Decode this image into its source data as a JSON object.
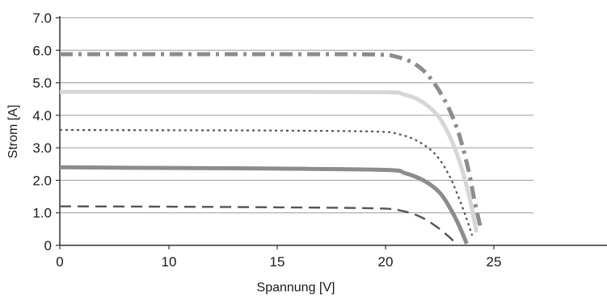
{
  "chart_data": {
    "type": "line",
    "title": "",
    "xlabel": "Spannung [V]",
    "ylabel": "Strom [A]",
    "xlim": [
      0,
      25
    ],
    "ylim": [
      0,
      7
    ],
    "x_ticks": [
      0,
      10,
      15,
      20,
      25
    ],
    "x_tick_labels": [
      "0",
      "10",
      "15",
      "20",
      "25"
    ],
    "y_ticks": [
      0,
      1,
      2,
      3,
      4,
      5,
      6,
      7
    ],
    "y_tick_labels": [
      "0",
      "1.0",
      "2.0",
      "3.0",
      "4.0",
      "5.0",
      "6.0",
      "7.0"
    ],
    "grid": "horizontal",
    "legend": "none",
    "series": [
      {
        "style": "dash-dot",
        "color": "#8c8c8c",
        "points": [
          [
            0,
            5.88
          ],
          [
            10,
            5.88
          ],
          [
            15,
            5.88
          ],
          [
            19.5,
            5.87
          ],
          [
            20.5,
            5.8
          ],
          [
            21.3,
            5.6
          ],
          [
            22.0,
            5.2
          ],
          [
            22.7,
            4.5
          ],
          [
            23.3,
            3.6
          ],
          [
            23.8,
            2.4
          ],
          [
            24.1,
            1.4
          ],
          [
            24.4,
            0.5
          ]
        ]
      },
      {
        "style": "solid",
        "color": "#d6d6d6",
        "points": [
          [
            0,
            4.72
          ],
          [
            10,
            4.72
          ],
          [
            15,
            4.72
          ],
          [
            20,
            4.71
          ],
          [
            20.8,
            4.65
          ],
          [
            21.6,
            4.45
          ],
          [
            22.4,
            4.0
          ],
          [
            23.0,
            3.3
          ],
          [
            23.5,
            2.4
          ],
          [
            23.9,
            1.4
          ],
          [
            24.2,
            0.4
          ]
        ]
      },
      {
        "style": "dotted",
        "color": "#555555",
        "points": [
          [
            0,
            3.55
          ],
          [
            10,
            3.54
          ],
          [
            15,
            3.53
          ],
          [
            19.5,
            3.5
          ],
          [
            20.6,
            3.42
          ],
          [
            21.5,
            3.2
          ],
          [
            22.3,
            2.8
          ],
          [
            22.9,
            2.2
          ],
          [
            23.3,
            1.6
          ],
          [
            23.7,
            0.9
          ],
          [
            24.0,
            0.3
          ]
        ]
      },
      {
        "style": "solid",
        "color": "#8c8c8c",
        "points": [
          [
            0,
            2.4
          ],
          [
            10,
            2.38
          ],
          [
            15,
            2.36
          ],
          [
            20,
            2.32
          ],
          [
            20.9,
            2.22
          ],
          [
            21.8,
            1.98
          ],
          [
            22.5,
            1.62
          ],
          [
            23.0,
            1.12
          ],
          [
            23.4,
            0.6
          ],
          [
            23.75,
            0.05
          ]
        ]
      },
      {
        "style": "dashed",
        "color": "#555555",
        "points": [
          [
            0,
            1.2
          ],
          [
            10,
            1.19
          ],
          [
            15,
            1.17
          ],
          [
            19.5,
            1.14
          ],
          [
            20.7,
            1.07
          ],
          [
            21.6,
            0.88
          ],
          [
            22.3,
            0.6
          ],
          [
            22.9,
            0.28
          ],
          [
            23.3,
            0.02
          ]
        ]
      }
    ]
  }
}
